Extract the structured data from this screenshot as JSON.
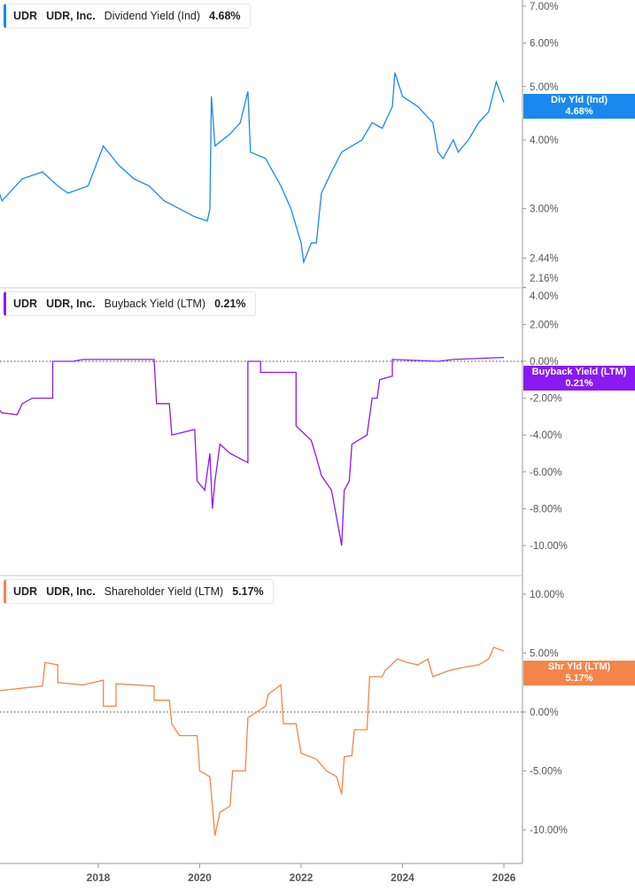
{
  "chart_data": [
    {
      "type": "line",
      "ticker": "UDR",
      "company": "UDR, Inc.",
      "metric": "Dividend Yield (Ind)",
      "current": "4.68%",
      "badge_label": "Div Yld (Ind)",
      "color": "#1a88f0",
      "scale": "log",
      "y_ticks": [
        "7.00%",
        "6.00%",
        "5.00%",
        "4.00%",
        "3.00%",
        "2.44%",
        "2.16%"
      ],
      "y_tick_values": [
        7,
        6,
        5,
        4,
        3,
        2.44,
        2.16
      ],
      "points": [
        [
          2016.0,
          3.3
        ],
        [
          2016.1,
          3.1
        ],
        [
          2016.5,
          3.4
        ],
        [
          2016.9,
          3.5
        ],
        [
          2017.2,
          3.3
        ],
        [
          2017.4,
          3.2
        ],
        [
          2017.8,
          3.3
        ],
        [
          2018.1,
          3.9
        ],
        [
          2018.4,
          3.6
        ],
        [
          2018.7,
          3.4
        ],
        [
          2019.0,
          3.3
        ],
        [
          2019.3,
          3.1
        ],
        [
          2019.6,
          3.0
        ],
        [
          2019.9,
          2.9
        ],
        [
          2020.15,
          2.85
        ],
        [
          2020.2,
          3.0
        ],
        [
          2020.23,
          4.8
        ],
        [
          2020.3,
          3.9
        ],
        [
          2020.6,
          4.1
        ],
        [
          2020.8,
          4.3
        ],
        [
          2020.95,
          4.9
        ],
        [
          2021.0,
          3.8
        ],
        [
          2021.3,
          3.7
        ],
        [
          2021.6,
          3.3
        ],
        [
          2021.8,
          3.0
        ],
        [
          2022.0,
          2.6
        ],
        [
          2022.05,
          2.4
        ],
        [
          2022.2,
          2.6
        ],
        [
          2022.3,
          2.6
        ],
        [
          2022.4,
          3.2
        ],
        [
          2022.6,
          3.5
        ],
        [
          2022.8,
          3.8
        ],
        [
          2023.0,
          3.9
        ],
        [
          2023.2,
          4.0
        ],
        [
          2023.4,
          4.3
        ],
        [
          2023.6,
          4.2
        ],
        [
          2023.8,
          4.6
        ],
        [
          2023.85,
          5.3
        ],
        [
          2024.0,
          4.8
        ],
        [
          2024.3,
          4.6
        ],
        [
          2024.6,
          4.3
        ],
        [
          2024.7,
          3.8
        ],
        [
          2024.8,
          3.7
        ],
        [
          2025.0,
          4.0
        ],
        [
          2025.1,
          3.8
        ],
        [
          2025.3,
          4.0
        ],
        [
          2025.5,
          4.3
        ],
        [
          2025.7,
          4.5
        ],
        [
          2025.85,
          5.1
        ],
        [
          2026.0,
          4.68
        ]
      ]
    },
    {
      "type": "line",
      "ticker": "UDR",
      "company": "UDR, Inc.",
      "metric": "Buyback Yield (LTM)",
      "current": "0.21%",
      "badge_label": "Buyback Yield (LTM)",
      "color": "#8a1af0",
      "scale": "linear",
      "y_ticks": [
        "4.00%",
        "2.00%",
        "0.00%",
        "-2.00%",
        "-4.00%",
        "-6.00%",
        "-8.00%",
        "-10.00%"
      ],
      "y_tick_values": [
        4,
        2,
        0,
        -2,
        -4,
        -6,
        -8,
        -10
      ],
      "points": [
        [
          2016.0,
          -2.5
        ],
        [
          2016.1,
          -2.8
        ],
        [
          2016.4,
          -2.9
        ],
        [
          2016.5,
          -2.3
        ],
        [
          2016.7,
          -2.0
        ],
        [
          2017.1,
          -2.0
        ],
        [
          2017.1,
          0.0
        ],
        [
          2017.5,
          0.0
        ],
        [
          2017.7,
          0.1
        ],
        [
          2019.1,
          0.1
        ],
        [
          2019.15,
          -2.3
        ],
        [
          2019.4,
          -2.3
        ],
        [
          2019.45,
          -4.0
        ],
        [
          2019.9,
          -3.7
        ],
        [
          2019.95,
          -6.5
        ],
        [
          2020.1,
          -7.0
        ],
        [
          2020.2,
          -5.0
        ],
        [
          2020.25,
          -8.0
        ],
        [
          2020.3,
          -6.5
        ],
        [
          2020.4,
          -4.5
        ],
        [
          2020.6,
          -5.0
        ],
        [
          2020.95,
          -5.5
        ],
        [
          2020.95,
          0.0
        ],
        [
          2021.2,
          0.0
        ],
        [
          2021.2,
          -0.6
        ],
        [
          2021.9,
          -0.6
        ],
        [
          2021.9,
          -3.5
        ],
        [
          2022.2,
          -4.3
        ],
        [
          2022.3,
          -5.2
        ],
        [
          2022.4,
          -6.2
        ],
        [
          2022.6,
          -7.0
        ],
        [
          2022.7,
          -8.5
        ],
        [
          2022.8,
          -10.0
        ],
        [
          2022.85,
          -7.0
        ],
        [
          2022.95,
          -6.5
        ],
        [
          2023.0,
          -4.5
        ],
        [
          2023.3,
          -4.0
        ],
        [
          2023.4,
          -2.0
        ],
        [
          2023.5,
          -2.0
        ],
        [
          2023.55,
          -1.0
        ],
        [
          2023.8,
          -0.8
        ],
        [
          2023.8,
          0.1
        ],
        [
          2024.7,
          0.0
        ],
        [
          2025.0,
          0.1
        ],
        [
          2026.0,
          0.21
        ]
      ]
    },
    {
      "type": "line",
      "ticker": "UDR",
      "company": "UDR, Inc.",
      "metric": "Shareholder Yield (LTM)",
      "current": "5.17%",
      "badge_label": "Shr Yld (LTM)",
      "color": "#f5844a",
      "scale": "linear",
      "y_ticks": [
        "10.00%",
        "5.00%",
        "0.00%",
        "-5.00%",
        "-10.00%"
      ],
      "y_tick_values": [
        10,
        5,
        0,
        -5,
        -10
      ],
      "points": [
        [
          2016.0,
          1.8
        ],
        [
          2016.9,
          2.2
        ],
        [
          2016.95,
          4.2
        ],
        [
          2017.2,
          4.0
        ],
        [
          2017.2,
          2.5
        ],
        [
          2017.7,
          2.3
        ],
        [
          2018.1,
          2.7
        ],
        [
          2018.1,
          0.5
        ],
        [
          2018.35,
          0.5
        ],
        [
          2018.35,
          2.4
        ],
        [
          2019.1,
          2.2
        ],
        [
          2019.1,
          1.0
        ],
        [
          2019.4,
          1.0
        ],
        [
          2019.45,
          -1.0
        ],
        [
          2019.6,
          -2.0
        ],
        [
          2019.95,
          -2.0
        ],
        [
          2020.0,
          -5.0
        ],
        [
          2020.2,
          -5.5
        ],
        [
          2020.25,
          -8.0
        ],
        [
          2020.3,
          -10.5
        ],
        [
          2020.4,
          -8.5
        ],
        [
          2020.6,
          -8.0
        ],
        [
          2020.65,
          -5.0
        ],
        [
          2020.9,
          -5.0
        ],
        [
          2020.95,
          -0.5
        ],
        [
          2021.3,
          0.5
        ],
        [
          2021.35,
          1.5
        ],
        [
          2021.6,
          2.3
        ],
        [
          2021.65,
          -1.0
        ],
        [
          2021.9,
          -1.0
        ],
        [
          2022.0,
          -3.5
        ],
        [
          2022.3,
          -4.0
        ],
        [
          2022.5,
          -5.0
        ],
        [
          2022.7,
          -5.5
        ],
        [
          2022.8,
          -7.0
        ],
        [
          2022.85,
          -3.8
        ],
        [
          2023.0,
          -3.7
        ],
        [
          2023.05,
          -1.5
        ],
        [
          2023.3,
          -1.5
        ],
        [
          2023.35,
          3.0
        ],
        [
          2023.6,
          3.0
        ],
        [
          2023.65,
          3.5
        ],
        [
          2023.9,
          4.5
        ],
        [
          2024.1,
          4.2
        ],
        [
          2024.3,
          4.0
        ],
        [
          2024.5,
          4.5
        ],
        [
          2024.6,
          3.0
        ],
        [
          2024.9,
          3.5
        ],
        [
          2025.2,
          3.8
        ],
        [
          2025.5,
          4.0
        ],
        [
          2025.7,
          4.5
        ],
        [
          2025.8,
          5.5
        ],
        [
          2026.0,
          5.17
        ]
      ]
    }
  ],
  "x_ticks": [
    "2018",
    "2020",
    "2022",
    "2024",
    "2026"
  ],
  "x_tick_values": [
    2018,
    2020,
    2022,
    2024,
    2026
  ]
}
